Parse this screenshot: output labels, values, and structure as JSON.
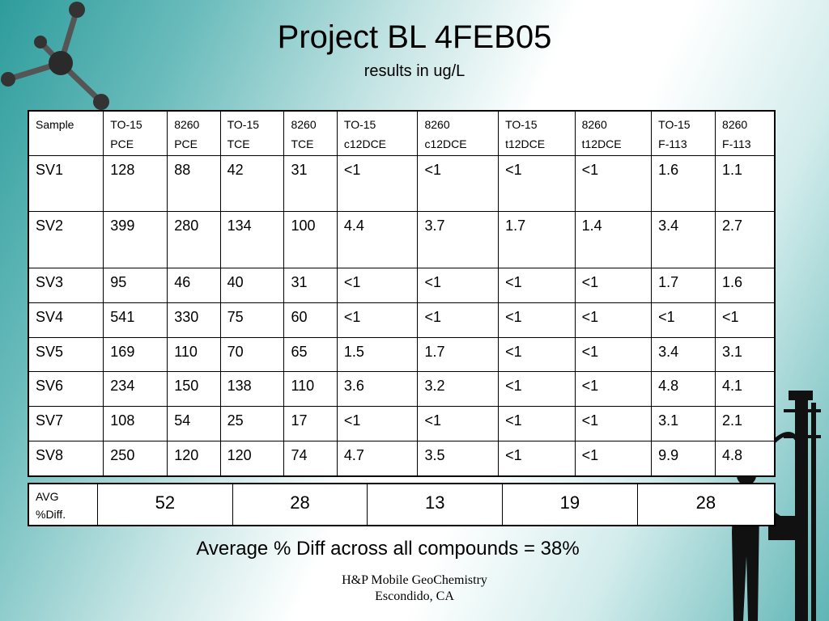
{
  "title": "Project BL  4FEB05",
  "subtitle": "results in ug/L",
  "table": {
    "headers": [
      [
        "Sample",
        ""
      ],
      [
        "TO-15",
        "PCE"
      ],
      [
        "8260",
        "PCE"
      ],
      [
        "TO-15",
        "TCE"
      ],
      [
        "8260",
        "TCE"
      ],
      [
        "TO-15",
        "c12DCE"
      ],
      [
        "8260",
        "c12DCE"
      ],
      [
        "TO-15",
        "t12DCE"
      ],
      [
        "8260",
        "t12DCE"
      ],
      [
        "TO-15",
        "F-113"
      ],
      [
        "8260",
        "F-113"
      ]
    ],
    "rows": [
      [
        "SV1",
        "128",
        "88",
        "42",
        "31",
        "<1",
        "<1",
        "<1",
        "<1",
        "1.6",
        "1.1"
      ],
      [
        "SV2",
        "399",
        "280",
        "134",
        "100",
        "4.4",
        "3.7",
        "1.7",
        "1.4",
        "3.4",
        "2.7"
      ],
      [
        "SV3",
        "95",
        "46",
        "40",
        "31",
        "<1",
        "<1",
        "<1",
        "<1",
        "1.7",
        "1.6"
      ],
      [
        "SV4",
        "541",
        "330",
        "75",
        "60",
        "<1",
        "<1",
        "<1",
        "<1",
        "<1",
        "<1"
      ],
      [
        "SV5",
        "169",
        "110",
        "70",
        "65",
        "1.5",
        "1.7",
        "<1",
        "<1",
        "3.4",
        "3.1"
      ],
      [
        "SV6",
        "234",
        "150",
        "138",
        "110",
        "3.6",
        "3.2",
        "<1",
        "<1",
        "4.8",
        "4.1"
      ],
      [
        "SV7",
        "108",
        "54",
        "25",
        "17",
        "<1",
        "<1",
        "<1",
        "<1",
        "3.1",
        "2.1"
      ],
      [
        "SV8",
        "250",
        "120",
        "120",
        "74",
        "4.7",
        "3.5",
        "<1",
        "<1",
        "9.9",
        "4.8"
      ]
    ]
  },
  "avg": {
    "label_line1": "AVG",
    "label_line2": "%Diff.",
    "values": [
      "52",
      "28",
      "13",
      "19",
      "28"
    ]
  },
  "summary": "Average % Diff across all compounds = 38%",
  "footer": {
    "line1": "H&P Mobile GeoChemistry",
    "line2": "Escondido, CA"
  }
}
